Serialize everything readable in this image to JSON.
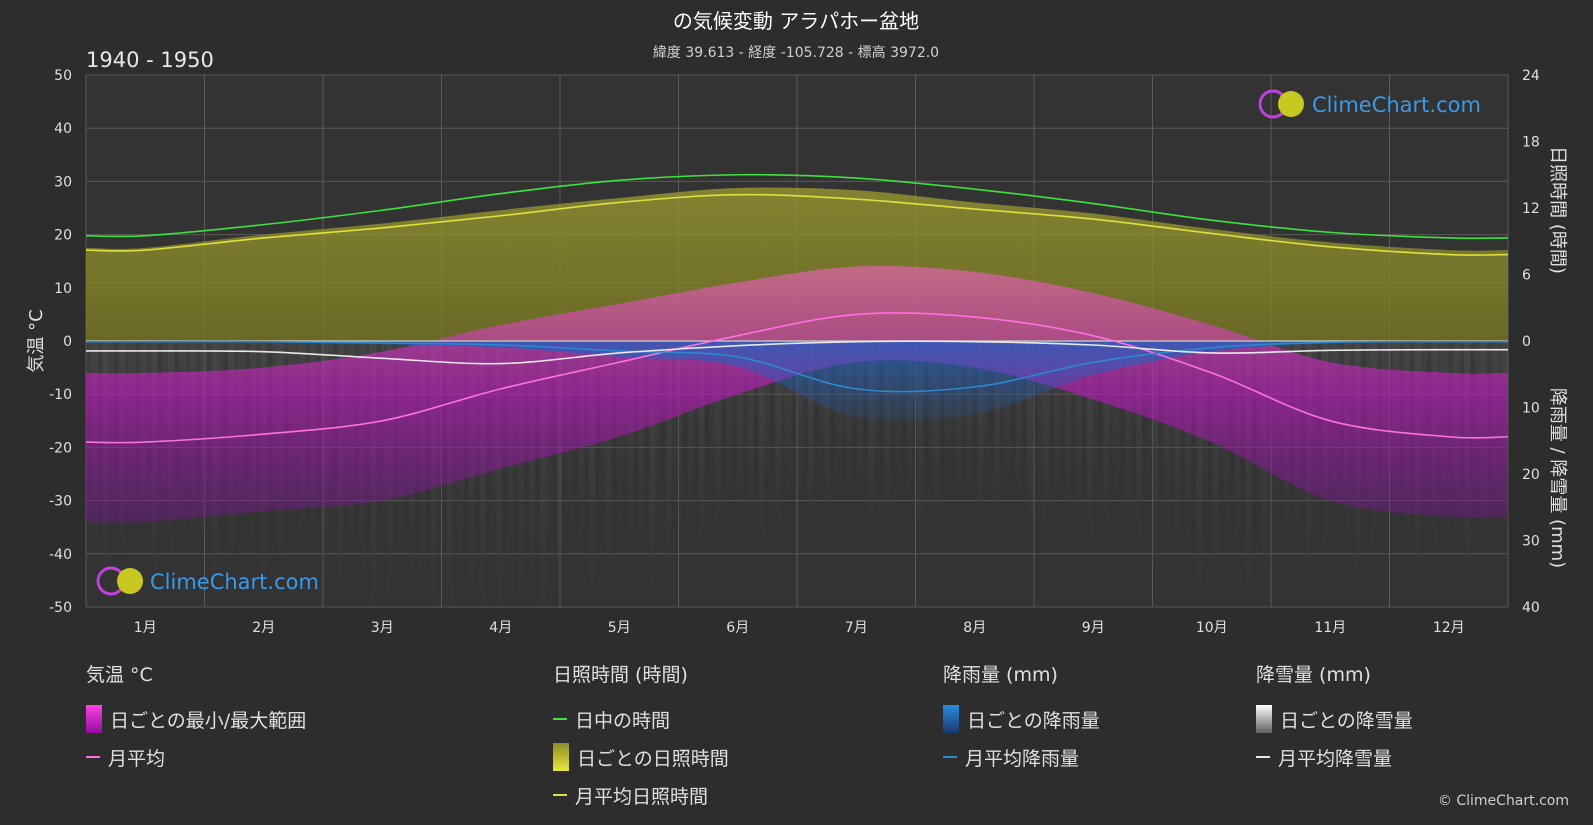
{
  "title": "の気候変動 アラパホー盆地",
  "subtitle": "緯度 39.613 - 経度 -105.728 - 標高 3972.0",
  "period": "1940 - 1950",
  "watermark": "ClimeChart.com",
  "copyright": "© ClimeChart.com",
  "colors": {
    "background": "#2d2d2d",
    "daylight": "#3ee23e",
    "sunshine": "#e0e040",
    "sunshine_fill": "#8c8c2a",
    "temp_fill": "#d020c0",
    "temp_line": "#ff70e0",
    "rain": "#2a8ad0",
    "snow": "#e8e8e8",
    "grid": "#5a5a5a"
  },
  "chart_data": {
    "type": "line",
    "title": "の気候変動 アラパホー盆地",
    "categories": [
      "1月",
      "2月",
      "3月",
      "4月",
      "5月",
      "6月",
      "7月",
      "8月",
      "9月",
      "10月",
      "11月",
      "12月"
    ],
    "y_left": {
      "label": "気温 °C",
      "range": [
        -50,
        50
      ],
      "ticks": [
        50,
        40,
        30,
        20,
        10,
        0,
        -10,
        -20,
        -30,
        -40,
        -50
      ]
    },
    "y_right_top": {
      "label": "日照時間 (時間)",
      "range": [
        0,
        24
      ],
      "ticks": [
        24,
        18,
        12,
        6,
        0
      ]
    },
    "y_right_bottom": {
      "label": "降雨量 / 降雪量 (mm)",
      "range": [
        0,
        40
      ],
      "ticks": [
        10,
        20,
        30,
        40
      ]
    },
    "grid": true,
    "series": [
      {
        "name": "日中の時間",
        "axis": "sunshine_hours",
        "values": [
          9.5,
          10.5,
          11.8,
          13.3,
          14.5,
          15.0,
          14.7,
          13.7,
          12.4,
          10.9,
          9.8,
          9.3
        ]
      },
      {
        "name": "月平均日照時間",
        "axis": "sunshine_hours",
        "values": [
          8.2,
          9.3,
          10.2,
          11.3,
          12.5,
          13.2,
          12.8,
          11.9,
          11.0,
          9.7,
          8.5,
          7.8
        ]
      },
      {
        "name": "日ごとの日照時間",
        "axis": "sunshine_hours",
        "values": [
          8.4,
          9.6,
          10.6,
          11.8,
          12.9,
          13.8,
          13.6,
          12.5,
          11.5,
          10.1,
          8.9,
          8.2
        ]
      },
      {
        "name": "月平均",
        "axis": "temperature_c",
        "values": [
          -19,
          -17.5,
          -15,
          -9,
          -4,
          1,
          5,
          4.5,
          1,
          -6,
          -15,
          -18
        ]
      },
      {
        "name": "日ごとの最小/最大範囲",
        "axis": "temperature_c",
        "min": [
          -34,
          -32,
          -30,
          -24,
          -18,
          -10,
          -4,
          -5,
          -11,
          -19,
          -30,
          -33
        ],
        "max": [
          -6,
          -5,
          -2,
          3,
          7,
          11,
          14,
          13,
          9,
          3,
          -4,
          -6
        ]
      },
      {
        "name": "月平均降雨量",
        "axis": "rain_mm",
        "values": [
          0.1,
          0.1,
          0.3,
          0.6,
          1.5,
          2.4,
          7.2,
          6.9,
          3.2,
          1.0,
          0.2,
          0.1
        ]
      },
      {
        "name": "月平均降雪量",
        "axis": "snow_mm",
        "values": [
          1.5,
          1.6,
          2.6,
          3.4,
          1.8,
          0.7,
          0.1,
          0.1,
          0.6,
          1.8,
          1.4,
          1.3
        ]
      }
    ]
  },
  "legend": {
    "temp": {
      "title": "気温 °C",
      "range_label": "日ごとの最小/最大範囲",
      "avg_label": "月平均"
    },
    "sun": {
      "title": "日照時間 (時間)",
      "daylight_label": "日中の時間",
      "daily_label": "日ごとの日照時間",
      "avg_label": "月平均日照時間"
    },
    "rain": {
      "title": "降雨量 (mm)",
      "daily_label": "日ごとの降雨量",
      "avg_label": "月平均降雨量"
    },
    "snow": {
      "title": "降雪量 (mm)",
      "daily_label": "日ごとの降雪量",
      "avg_label": "月平均降雪量"
    }
  }
}
